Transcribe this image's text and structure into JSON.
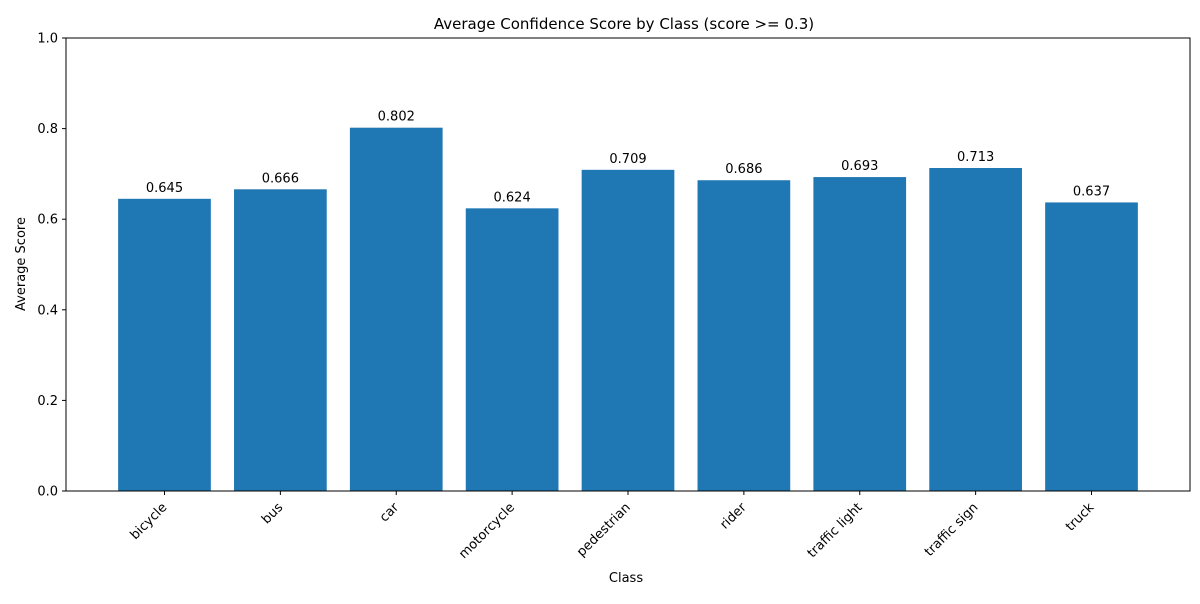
{
  "chart_data": {
    "type": "bar",
    "title": "Average Confidence Score by Class (score >= 0.3)",
    "xlabel": "Class",
    "ylabel": "Average Score",
    "categories": [
      "bicycle",
      "bus",
      "car",
      "motorcycle",
      "pedestrian",
      "rider",
      "traffic light",
      "traffic sign",
      "truck"
    ],
    "values": [
      0.645,
      0.666,
      0.802,
      0.624,
      0.709,
      0.686,
      0.693,
      0.713,
      0.637
    ],
    "data_labels": [
      "0.645",
      "0.666",
      "0.802",
      "0.624",
      "0.709",
      "0.686",
      "0.693",
      "0.713",
      "0.637"
    ],
    "ylim": [
      0,
      1.0
    ],
    "yticks": [
      "0.0",
      "0.2",
      "0.4",
      "0.6",
      "0.8",
      "1.0"
    ],
    "grid": false,
    "legend": "none",
    "bar_color": "#1f77b4"
  }
}
